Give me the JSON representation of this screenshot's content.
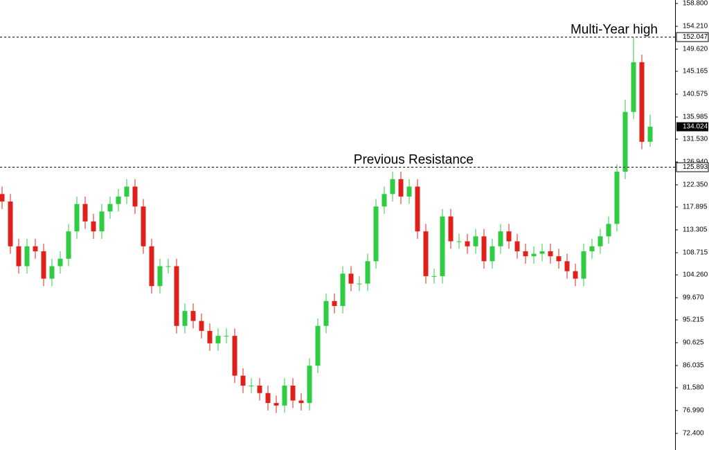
{
  "chart_data": {
    "type": "candlestick",
    "up_color": "#2ecc40",
    "down_color": "#e0201b",
    "open": [
      120.5,
      119,
      110,
      106,
      110,
      109,
      103.5,
      106,
      107.5,
      113,
      118.5,
      115,
      113,
      117,
      118.5,
      120,
      122,
      118,
      110,
      102,
      106,
      106,
      94,
      97,
      95,
      93,
      90.5,
      92,
      92,
      84,
      82,
      82,
      80.5,
      78.5,
      78,
      82,
      79,
      78.5,
      86,
      94,
      99,
      98,
      104.5,
      102.5,
      102.5,
      107,
      118,
      120.5,
      123.5,
      120,
      122,
      113,
      104,
      104,
      116,
      111,
      111,
      110,
      112,
      107,
      110,
      113,
      111,
      109,
      108,
      108.5,
      109,
      108,
      107,
      105,
      103.5,
      109,
      110,
      112,
      114.5,
      125,
      137,
      147,
      131
    ],
    "high": [
      122,
      120.5,
      111.5,
      111.5,
      111.5,
      110.5,
      107.5,
      109,
      114.5,
      120,
      120,
      116.5,
      118.5,
      120,
      121.5,
      123.5,
      123.5,
      119.5,
      111.5,
      107.5,
      107.5,
      107.5,
      98.5,
      98.5,
      96.5,
      94.5,
      93.5,
      93.5,
      93.5,
      85.5,
      83.5,
      83.5,
      82,
      80,
      83.5,
      83.5,
      80.5,
      87.5,
      95.5,
      100.5,
      100.5,
      106,
      106,
      104,
      108.5,
      119.5,
      122,
      125,
      125,
      123.5,
      123.5,
      114.5,
      105.5,
      117.5,
      117.5,
      112.5,
      112.5,
      113.5,
      113.5,
      111.5,
      114.5,
      114.5,
      112.5,
      110.5,
      110,
      110.5,
      110.5,
      109.5,
      108.5,
      106.5,
      110.5,
      111.5,
      113.5,
      116,
      126.5,
      139.5,
      152.047,
      148.5,
      136.5
    ],
    "low": [
      117.5,
      108.5,
      104.5,
      104.5,
      107.5,
      102,
      102,
      104.5,
      106,
      111.5,
      113.5,
      111.5,
      111.5,
      115.5,
      117,
      118.5,
      116.5,
      108.5,
      100.5,
      100.5,
      104.5,
      92.5,
      92.5,
      93.5,
      91.5,
      89,
      89,
      90.5,
      82.5,
      80.5,
      80.5,
      79,
      77,
      76.5,
      76.5,
      77.5,
      77,
      77,
      84.5,
      92.5,
      96.5,
      96.5,
      101,
      101,
      101,
      105.5,
      116.5,
      119,
      118.5,
      118.5,
      111.5,
      102.5,
      102.5,
      102.5,
      109.5,
      109.5,
      108.5,
      108.5,
      105.5,
      105.5,
      108.5,
      109.5,
      107.5,
      106.5,
      106.5,
      107,
      106.5,
      105.5,
      103.5,
      102,
      102,
      107.5,
      108.5,
      110.5,
      113,
      123.5,
      135.5,
      129.5,
      130
    ],
    "close": [
      119,
      110,
      106,
      110,
      109,
      103.5,
      106,
      107.5,
      113,
      118.5,
      115,
      113,
      117,
      118.5,
      120,
      122,
      118,
      110,
      102,
      106,
      106,
      94,
      97,
      95,
      93,
      90.5,
      92,
      92,
      84,
      82,
      82,
      80.5,
      78.5,
      78,
      82,
      79,
      78.5,
      86,
      94,
      99,
      98,
      104.5,
      102.5,
      102.5,
      107,
      118,
      120.5,
      123.5,
      120,
      122,
      113,
      104,
      104,
      116,
      111,
      111,
      110,
      112,
      107,
      110,
      113,
      111,
      109,
      108,
      108.5,
      109,
      108,
      107,
      105,
      103.5,
      109,
      110,
      112,
      114.5,
      125,
      137,
      147,
      131,
      134.024
    ],
    "ylim": [
      69.06,
      159.5
    ],
    "yticks": [
      {
        "value": 158.8,
        "label": "158.800"
      },
      {
        "value": 154.21,
        "label": "154.210"
      },
      {
        "value": 149.62,
        "label": "149.620"
      },
      {
        "value": 145.165,
        "label": "145.165"
      },
      {
        "value": 140.575,
        "label": "140.575"
      },
      {
        "value": 135.985,
        "label": "135.985"
      },
      {
        "value": 131.53,
        "label": "131.530"
      },
      {
        "value": 126.94,
        "label": "126.940"
      },
      {
        "value": 122.35,
        "label": "122.350"
      },
      {
        "value": 117.895,
        "label": "117.895"
      },
      {
        "value": 113.305,
        "label": "113.305"
      },
      {
        "value": 108.715,
        "label": "108.715"
      },
      {
        "value": 104.26,
        "label": "104.260"
      },
      {
        "value": 99.67,
        "label": "99.670"
      },
      {
        "value": 95.215,
        "label": "95.215"
      },
      {
        "value": 90.625,
        "label": "90.625"
      },
      {
        "value": 86.035,
        "label": "86.035"
      },
      {
        "value": 81.58,
        "label": "81.580"
      },
      {
        "value": 76.99,
        "label": "76.990"
      },
      {
        "value": 72.4,
        "label": "72.400"
      }
    ],
    "levels": [
      {
        "value": 152.047,
        "annotation": "Multi-Year high"
      },
      {
        "value": 125.893,
        "annotation": "Previous Resistance"
      }
    ],
    "grid": false
  }
}
